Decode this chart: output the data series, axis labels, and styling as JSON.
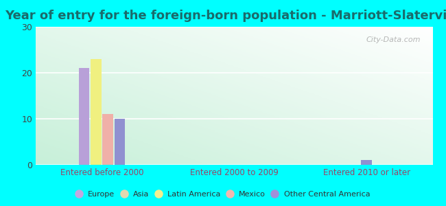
{
  "title": "Year of entry for the foreign-born population - Marriott-Slaterville",
  "title_fontsize": 13,
  "title_color": "#1a6b6b",
  "background_color": "#00FFFF",
  "plot_bg_gradient_colors": [
    "#c8f0d8",
    "#f0faf0",
    "#ffffff"
  ],
  "categories": [
    "Entered before 2000",
    "Entered 2000 to 2009",
    "Entered 2010 or later"
  ],
  "cat_label_color": "#994466",
  "series": [
    {
      "name": "Europe",
      "color": "#b8a0d8",
      "values": [
        21,
        0,
        0
      ]
    },
    {
      "name": "Asia",
      "color": "#e8dfa0",
      "values": [
        0,
        0,
        0
      ]
    },
    {
      "name": "Latin America",
      "color": "#f0f080",
      "values": [
        23,
        0,
        0
      ]
    },
    {
      "name": "Mexico",
      "color": "#f0b0a8",
      "values": [
        11,
        0,
        0
      ]
    },
    {
      "name": "Other Central America",
      "color": "#9090d0",
      "values": [
        10,
        0,
        1
      ]
    }
  ],
  "ylim": [
    0,
    30
  ],
  "yticks": [
    0,
    10,
    20,
    30
  ],
  "legend_colors": [
    "#c0a8e0",
    "#e0d8b0",
    "#f0f090",
    "#f0b8b0",
    "#a090d8"
  ],
  "legend_labels": [
    "Europe",
    "Asia",
    "Latin America",
    "Mexico",
    "Other Central America"
  ],
  "watermark": "City-Data.com"
}
